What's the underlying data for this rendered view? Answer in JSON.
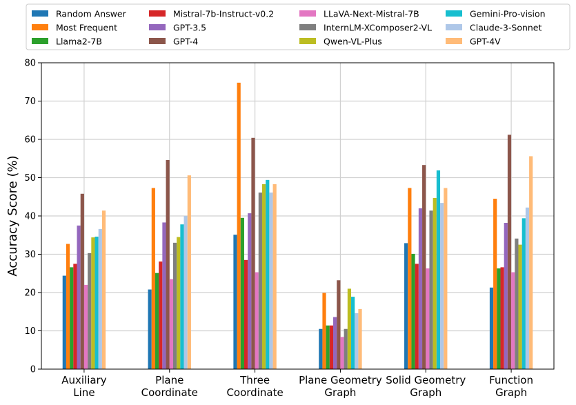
{
  "chart_data": {
    "type": "bar",
    "title": "",
    "xlabel": "",
    "ylabel": "Accuracy Score (%)",
    "ylim": [
      0,
      80
    ],
    "yticks": [
      0,
      10,
      20,
      30,
      40,
      50,
      60,
      70,
      80
    ],
    "grid": true,
    "legend_position": "top",
    "categories": [
      [
        "Auxiliary",
        "Line"
      ],
      [
        "Plane",
        "Coordinate"
      ],
      [
        "Three",
        "Coordinate"
      ],
      [
        "Plane Geometry",
        "Graph"
      ],
      [
        "Solid Geometry",
        "Graph"
      ],
      [
        "Function",
        "Graph"
      ]
    ],
    "series": [
      {
        "name": "Random Answer",
        "color": "#1f77b4",
        "values": [
          24.4,
          20.8,
          35.1,
          10.5,
          32.9,
          21.3
        ]
      },
      {
        "name": "Most Frequent",
        "color": "#ff7f0e",
        "values": [
          32.7,
          47.3,
          74.8,
          19.9,
          47.3,
          44.5
        ]
      },
      {
        "name": "Llama2-7B",
        "color": "#2ca02c",
        "values": [
          26.6,
          25.1,
          39.5,
          11.4,
          30.1,
          26.3
        ]
      },
      {
        "name": "Mistral-7b-Instruct-v0.2",
        "color": "#d62728",
        "values": [
          27.5,
          28.1,
          28.5,
          11.4,
          27.5,
          26.6
        ]
      },
      {
        "name": "GPT-3.5",
        "color": "#9467bd",
        "values": [
          37.5,
          38.3,
          40.7,
          13.6,
          42.0,
          38.2
        ]
      },
      {
        "name": "GPT-4",
        "color": "#8c564b",
        "values": [
          45.8,
          54.6,
          60.4,
          23.2,
          53.3,
          61.2
        ]
      },
      {
        "name": "LLaVA-Next-Mistral-7B",
        "color": "#e377c2",
        "values": [
          22.0,
          23.5,
          25.3,
          8.4,
          26.3,
          25.3
        ]
      },
      {
        "name": "InternLM-XComposer2-VL",
        "color": "#7f7f7f",
        "values": [
          30.3,
          33.0,
          46.1,
          10.5,
          41.4,
          34.1
        ]
      },
      {
        "name": "Qwen-VL-Plus",
        "color": "#bcbd22",
        "values": [
          34.4,
          34.5,
          48.3,
          21.0,
          44.7,
          32.5
        ]
      },
      {
        "name": "Gemini-Pro-vision",
        "color": "#17becf",
        "values": [
          34.6,
          37.8,
          49.4,
          18.9,
          51.9,
          39.4
        ]
      },
      {
        "name": "Claude-3-Sonnet",
        "color": "#aec7e8",
        "values": [
          36.6,
          40.0,
          46.1,
          14.6,
          43.4,
          42.2
        ]
      },
      {
        "name": "GPT-4V",
        "color": "#ffbb78",
        "values": [
          41.4,
          50.6,
          48.3,
          15.7,
          47.3,
          55.6
        ]
      }
    ]
  }
}
